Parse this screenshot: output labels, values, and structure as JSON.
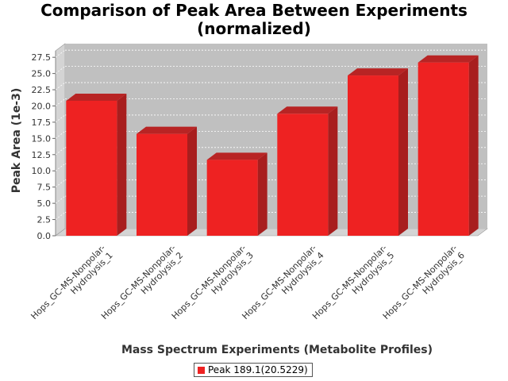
{
  "chart_data": {
    "type": "bar",
    "title_lines": [
      "Comparison of Peak Area Between Experiments",
      "(normalized)"
    ],
    "xlabel": "Mass Spectrum Experiments (Metabolite Profiles)",
    "ylabel": "Peak Area (1e-3)",
    "categories": [
      [
        "Hops_GC-MS-Nonpolar-",
        "Hydrolysis_1"
      ],
      [
        "Hops_GC-MS-Nonpolar-",
        "Hydrolysis_2"
      ],
      [
        "Hops_GC-MS-Nonpolar-",
        "Hydrolysis_3"
      ],
      [
        "Hops_GC-MS-Nonpolar-",
        "Hydrolysis_4"
      ],
      [
        "Hops_GC-MS-Nonpolar-",
        "Hydrolysis_5"
      ],
      [
        "Hops_GC-MS-Nonpolar-",
        "Hydrolysis_6"
      ]
    ],
    "series": [
      {
        "name": "Peak 189.1(20.5229)",
        "values": [
          20.8,
          15.7,
          11.7,
          18.8,
          24.7,
          26.7
        ],
        "color": "#ee2222"
      }
    ],
    "ylim": [
      0,
      28.5
    ],
    "yticks": [
      "0.0",
      "2.5",
      "5.0",
      "7.5",
      "10.0",
      "12.5",
      "15.0",
      "17.5",
      "20.0",
      "22.5",
      "25.0",
      "27.5"
    ],
    "grid": true,
    "legend_position": "bottom",
    "colors": {
      "plot_background": "#c0c0c0",
      "bar_front": "#ee2222",
      "bar_top": "#b82424",
      "bar_side": "#a81e1e"
    }
  }
}
